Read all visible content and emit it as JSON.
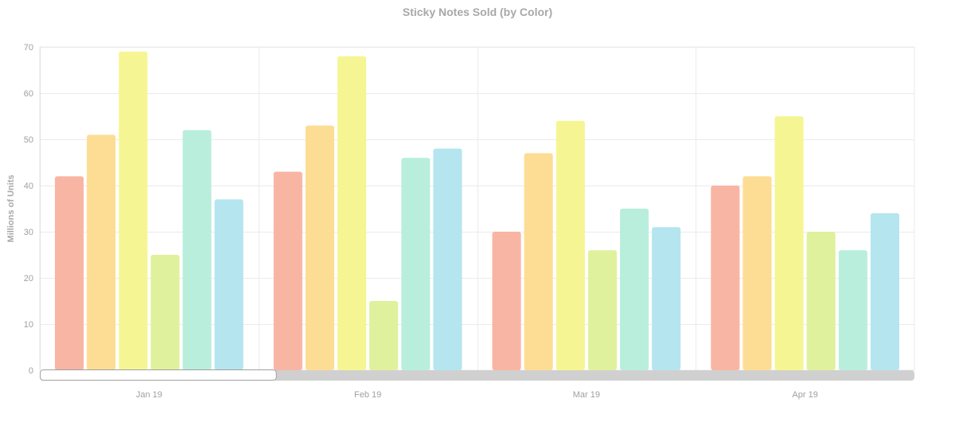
{
  "chart_data": {
    "type": "bar",
    "title": "Sticky Notes Sold (by Color)",
    "ylabel": "Millions of Units",
    "xlabel": "",
    "categories": [
      "Jan 19",
      "Feb 19",
      "Mar 19",
      "Apr 19"
    ],
    "ylim": [
      0,
      70
    ],
    "yticks": [
      0,
      10,
      20,
      30,
      40,
      50,
      60,
      70
    ],
    "grid": true,
    "legend": "none",
    "series": [
      {
        "color": "#f9b5a4",
        "values": [
          42,
          43,
          30,
          40
        ]
      },
      {
        "color": "#fddd94",
        "values": [
          51,
          53,
          47,
          42
        ]
      },
      {
        "color": "#f5f693",
        "values": [
          69,
          68,
          54,
          55
        ]
      },
      {
        "color": "#dff19c",
        "values": [
          25,
          15,
          26,
          30
        ]
      },
      {
        "color": "#b9eedd",
        "values": [
          52,
          46,
          35,
          26
        ]
      },
      {
        "color": "#b5e5ef",
        "values": [
          37,
          48,
          31,
          34
        ]
      }
    ],
    "scrollbar": {
      "track_color": "#d0d0d0",
      "thumb_color": "#ffffff",
      "visible_fraction": 0.27
    }
  }
}
